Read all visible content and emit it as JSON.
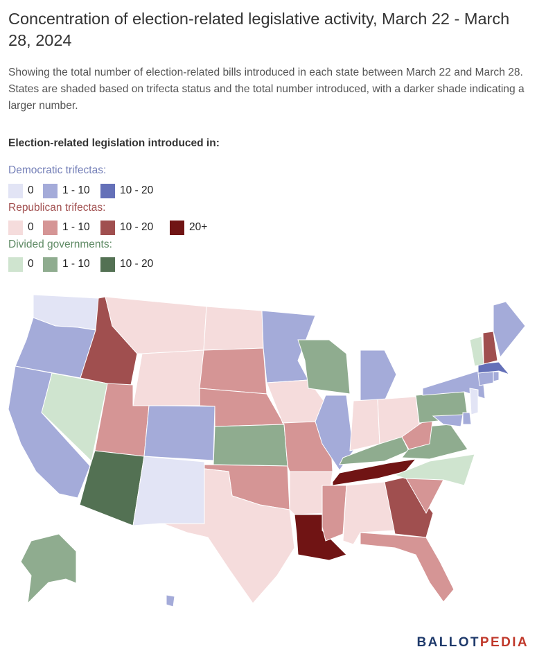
{
  "title": "Concentration of election-related legislative activity, March 22 - March 28, 2024",
  "subtitle": "Showing the total number of election-related bills introduced in each state between March 22 and March 28. States are shaded based on trifecta status and the total number introduced, with a darker shade indicating a larger number.",
  "legend": {
    "heading": "Election-related legislation introduced in:",
    "groups": [
      {
        "title": "Democratic trifectas:",
        "title_color": "#7580b8",
        "items": [
          {
            "label": "0",
            "color": "#e2e4f5"
          },
          {
            "label": "1 - 10",
            "color": "#a4abd9"
          },
          {
            "label": "10 - 20",
            "color": "#6470b8"
          }
        ]
      },
      {
        "title": "Republican trifectas:",
        "title_color": "#a14f4f",
        "items": [
          {
            "label": "0",
            "color": "#f5dcdc"
          },
          {
            "label": "1 - 10",
            "color": "#d59595"
          },
          {
            "label": "10 - 20",
            "color": "#a04f4f"
          },
          {
            "label": "20+",
            "color": "#701414"
          }
        ]
      },
      {
        "title": "Divided governments:",
        "title_color": "#5e8a64",
        "items": [
          {
            "label": "0",
            "color": "#cfe4cf"
          },
          {
            "label": "1 - 10",
            "color": "#8fac8f"
          },
          {
            "label": "10 - 20",
            "color": "#537153"
          }
        ]
      }
    ]
  },
  "map": {
    "states": [
      {
        "name": "Washington",
        "fill": "#e2e4f5"
      },
      {
        "name": "Oregon",
        "fill": "#a4abd9"
      },
      {
        "name": "California",
        "fill": "#a4abd9"
      },
      {
        "name": "Idaho",
        "fill": "#a04f4f"
      },
      {
        "name": "Nevada",
        "fill": "#cfe4cf"
      },
      {
        "name": "Montana",
        "fill": "#f5dcdc"
      },
      {
        "name": "Wyoming",
        "fill": "#f5dcdc"
      },
      {
        "name": "Utah",
        "fill": "#d59595"
      },
      {
        "name": "Arizona",
        "fill": "#537153"
      },
      {
        "name": "Colorado",
        "fill": "#a4abd9"
      },
      {
        "name": "New Mexico",
        "fill": "#e2e4f5"
      },
      {
        "name": "North Dakota",
        "fill": "#f5dcdc"
      },
      {
        "name": "South Dakota",
        "fill": "#d59595"
      },
      {
        "name": "Nebraska",
        "fill": "#d59595"
      },
      {
        "name": "Kansas",
        "fill": "#8fac8f"
      },
      {
        "name": "Oklahoma",
        "fill": "#d59595"
      },
      {
        "name": "Texas",
        "fill": "#f5dcdc"
      },
      {
        "name": "Minnesota",
        "fill": "#a4abd9"
      },
      {
        "name": "Iowa",
        "fill": "#f5dcdc"
      },
      {
        "name": "Missouri",
        "fill": "#d59595"
      },
      {
        "name": "Arkansas",
        "fill": "#f5dcdc"
      },
      {
        "name": "Louisiana",
        "fill": "#701414"
      },
      {
        "name": "Wisconsin",
        "fill": "#8fac8f"
      },
      {
        "name": "Illinois",
        "fill": "#a4abd9"
      },
      {
        "name": "Michigan",
        "fill": "#a4abd9"
      },
      {
        "name": "Indiana",
        "fill": "#f5dcdc"
      },
      {
        "name": "Ohio",
        "fill": "#f5dcdc"
      },
      {
        "name": "Kentucky",
        "fill": "#8fac8f"
      },
      {
        "name": "Tennessee",
        "fill": "#701414"
      },
      {
        "name": "Mississippi",
        "fill": "#d59595"
      },
      {
        "name": "Alabama",
        "fill": "#f5dcdc"
      },
      {
        "name": "Georgia",
        "fill": "#a04f4f"
      },
      {
        "name": "Florida",
        "fill": "#d59595"
      },
      {
        "name": "South Carolina",
        "fill": "#d59595"
      },
      {
        "name": "North Carolina",
        "fill": "#cfe4cf"
      },
      {
        "name": "Virginia",
        "fill": "#8fac8f"
      },
      {
        "name": "West Virginia",
        "fill": "#d59595"
      },
      {
        "name": "Pennsylvania",
        "fill": "#8fac8f"
      },
      {
        "name": "New York",
        "fill": "#a4abd9"
      },
      {
        "name": "Maryland",
        "fill": "#a4abd9"
      },
      {
        "name": "Delaware",
        "fill": "#a4abd9"
      },
      {
        "name": "New Jersey",
        "fill": "#e2e4f5"
      },
      {
        "name": "Connecticut",
        "fill": "#a4abd9"
      },
      {
        "name": "Rhode Island",
        "fill": "#a4abd9"
      },
      {
        "name": "Massachusetts",
        "fill": "#6470b8"
      },
      {
        "name": "Vermont",
        "fill": "#cfe4cf"
      },
      {
        "name": "New Hampshire",
        "fill": "#a04f4f"
      },
      {
        "name": "Maine",
        "fill": "#a4abd9"
      },
      {
        "name": "Alaska",
        "fill": "#8fac8f"
      },
      {
        "name": "Hawaii",
        "fill": "#a4abd9"
      }
    ]
  },
  "logo": {
    "part1": "BALLOT",
    "part2": "PEDIA"
  }
}
